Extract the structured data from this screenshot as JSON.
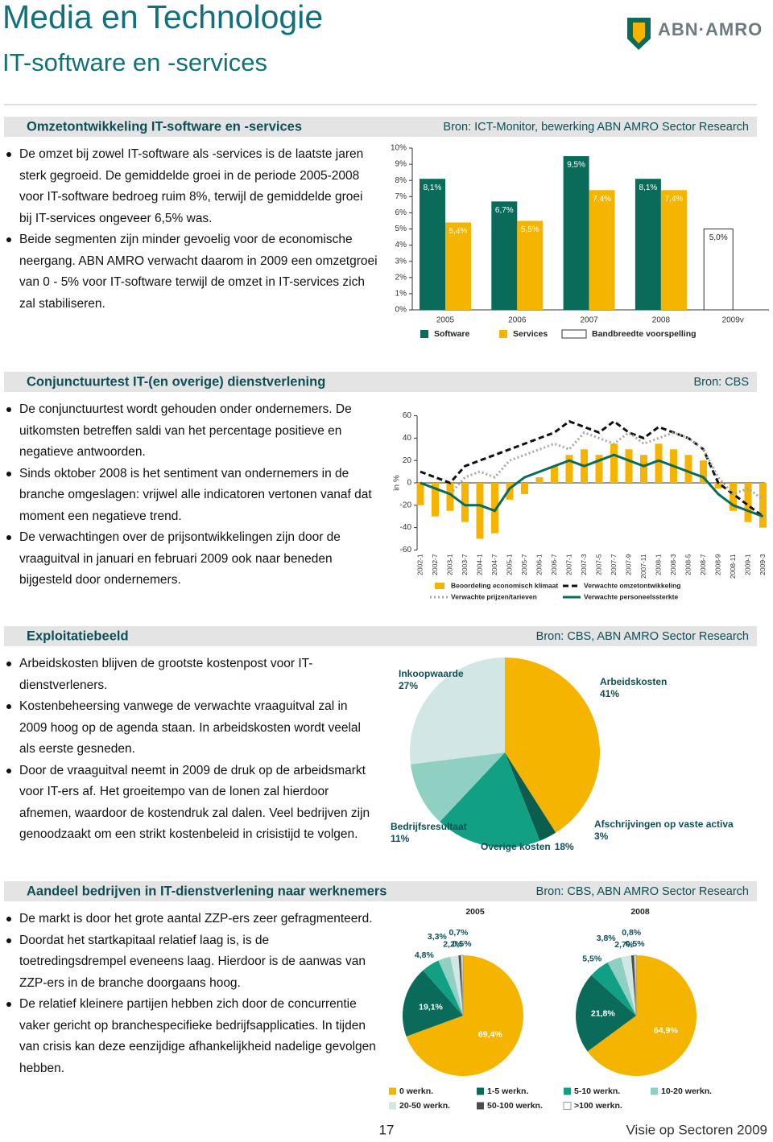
{
  "header": {
    "title": "Media en Technologie",
    "subtitle": "IT-software en -services",
    "logo": "ABN·AMRO"
  },
  "sections": [
    {
      "title": "Omzetontwikkeling IT-software en -services",
      "source": "Bron: ICT-Monitor, bewerking ABN AMRO Sector Research",
      "bullets": [
        "De omzet bij zowel IT-software als -services is de laatste jaren sterk gegroeid. De gemiddelde groei in de periode 2005-2008 voor IT-software bedroeg ruim 8%, terwijl de gemiddelde groei bij IT-services ongeveer 6,5% was.",
        "Beide segmenten zijn minder gevoelig voor de economische neergang. ABN AMRO verwacht daarom in 2009 een omzetgroei van 0 - 5% voor IT-software terwijl de omzet in IT-services zich zal stabiliseren."
      ]
    },
    {
      "title": "Conjunctuurtest IT-(en overige) dienstverlening",
      "source": "Bron: CBS",
      "bullets": [
        "De conjunctuurtest wordt gehouden onder ondernemers. De uitkomsten betreffen saldi van het percentage positieve en negatieve antwoorden.",
        "Sinds oktober 2008 is het sentiment van ondernemers in de branche omgeslagen: vrijwel alle indicatoren vertonen vanaf dat moment een negatieve trend.",
        "De verwachtingen over de prijsontwikkelingen zijn door de vraaguitval in januari en februari 2009 ook naar beneden bijgesteld door ondernemers."
      ]
    },
    {
      "title": "Exploitatiebeeld",
      "source": "Bron: CBS, ABN AMRO Sector Research",
      "bullets": [
        "Arbeidskosten blijven de grootste kostenpost voor IT-dienstverleners.",
        "Kostenbeheersing vanwege de verwachte vraaguitval zal in 2009 hoog op de agenda staan. In arbeidskosten wordt veelal als eerste gesneden.",
        "Door de vraaguitval neemt in 2009 de druk op de arbeidsmarkt voor IT-ers af. Het groeitempo van de lonen zal hierdoor afnemen, waardoor de kostendruk zal dalen. Veel bedrijven zijn genoodzaakt om een strikt kostenbeleid in crisistijd te volgen."
      ]
    },
    {
      "title": "Aandeel bedrijven in IT-dienstverlening naar werknemers",
      "source": "Bron: CBS, ABN AMRO Sector Research",
      "bullets": [
        "De markt is door het grote aantal ZZP-ers zeer gefragmenteerd.",
        "Doordat het startkapitaal relatief laag is, is de toetredingsdrempel eveneens laag. Hierdoor is de aanwas van ZZP-ers in de branche doorgaans hoog.",
        "De relatief kleinere partijen hebben zich door de concurrentie vaker gericht op branchespecifieke bedrijfsapplicaties. In tijden van crisis kan deze eenzijdige afhankelijkheid nadelige gevolgen hebben."
      ]
    }
  ],
  "chart_data": [
    {
      "type": "bar",
      "categories": [
        "2005",
        "2006",
        "2007",
        "2008",
        "2009v"
      ],
      "series": [
        {
          "name": "Software",
          "color": "#0b6b5a",
          "values": [
            8.1,
            6.7,
            9.5,
            8.1,
            null
          ],
          "value_labels": [
            "8,1%",
            "6,7%",
            "9,5%",
            "8,1%",
            null
          ]
        },
        {
          "name": "Services",
          "color": "#f5b400",
          "values": [
            5.4,
            5.5,
            7.4,
            7.4,
            null
          ],
          "value_labels": [
            "5,4%",
            "5,5%",
            "7,4%",
            "7,4%",
            null
          ]
        },
        {
          "name": "Bandbreedte voorspelling",
          "color": "#ffffff",
          "edgecolor": "#333333",
          "values": [
            null,
            null,
            null,
            null,
            5.0
          ],
          "value_labels": [
            null,
            null,
            null,
            null,
            "5,0%"
          ]
        }
      ],
      "ylim": [
        0,
        10
      ],
      "yticks": [
        {
          "value": 0,
          "label": "0%"
        },
        {
          "value": 1,
          "label": "1%"
        },
        {
          "value": 2,
          "label": "2%"
        },
        {
          "value": 3,
          "label": "3%"
        },
        {
          "value": 4,
          "label": "4%"
        },
        {
          "value": 5,
          "label": "5%"
        },
        {
          "value": 6,
          "label": "6%"
        },
        {
          "value": 7,
          "label": "7%"
        },
        {
          "value": 8,
          "label": "8%"
        },
        {
          "value": 9,
          "label": "9%"
        },
        {
          "value": 10,
          "label": "10%"
        }
      ],
      "grid": false
    },
    {
      "type": "combo",
      "y_label": "in %",
      "categories": [
        "2002-1",
        "2002-7",
        "2003-1",
        "2003-7",
        "2004-1",
        "2004-7",
        "2005-1",
        "2005-7",
        "2006-1",
        "2006-7",
        "2007-1",
        "2007-3",
        "2007-5",
        "2007-7",
        "2007-9",
        "2007-11",
        "2008-1",
        "2008-3",
        "2008-5",
        "2008-7",
        "2008-9",
        "2008-11",
        "2009-1",
        "2009-3"
      ],
      "series": [
        {
          "name": "Beoordeling economisch klimaat",
          "kind": "bar",
          "color": "#f5b400",
          "values": [
            -20,
            -30,
            -25,
            -35,
            -50,
            -45,
            -15,
            -10,
            5,
            15,
            25,
            30,
            25,
            35,
            30,
            25,
            35,
            30,
            25,
            20,
            -5,
            -25,
            -35,
            -40
          ]
        },
        {
          "name": "Verwachte omzetontwikkeling",
          "kind": "line",
          "style": "dashed",
          "color": "#111111",
          "values": [
            10,
            5,
            0,
            15,
            20,
            25,
            30,
            35,
            40,
            45,
            55,
            50,
            45,
            55,
            45,
            40,
            50,
            45,
            40,
            30,
            0,
            -10,
            -20,
            -30
          ]
        },
        {
          "name": "Verwachte prijzen/tarieven",
          "kind": "line",
          "style": "dotted",
          "color": "#a6a6a6",
          "values": [
            0,
            -5,
            -10,
            5,
            10,
            5,
            20,
            25,
            30,
            35,
            30,
            45,
            40,
            35,
            45,
            35,
            40,
            45,
            40,
            30,
            5,
            -10,
            -5,
            -15
          ]
        },
        {
          "name": "Verwachte personeelssterkte",
          "kind": "line",
          "style": "solid",
          "color": "#0b6b5a",
          "values": [
            0,
            -5,
            -10,
            -20,
            -20,
            -25,
            -5,
            5,
            10,
            15,
            20,
            15,
            20,
            25,
            20,
            15,
            20,
            15,
            10,
            5,
            -10,
            -20,
            -25,
            -30
          ]
        }
      ],
      "ylim": [
        -60,
        60
      ],
      "yticks": [
        -60,
        -40,
        -20,
        0,
        20,
        40,
        60
      ],
      "grid": false
    },
    {
      "type": "pie",
      "categories": [
        "Arbeidskosten",
        "Afschrijvingen op vaste activa",
        "Overige kosten",
        "Bedrijfsresultaat",
        "Inkoopwaarde"
      ],
      "values": [
        41,
        3,
        18,
        11,
        27
      ],
      "value_labels": [
        "41%",
        "3%",
        "18%",
        "11%",
        "27%"
      ],
      "colors": [
        "#f5b400",
        "#0b5e4e",
        "#12a085",
        "#8fd0c2",
        "#d3e6e6"
      ]
    },
    {
      "type": "pie",
      "categories": [
        "0 werkn.",
        "1-5 werkn.",
        "5-10 werkn.",
        "10-20 werkn.",
        "20-50 werkn.",
        "50-100 werkn.",
        ">100 werkn."
      ],
      "colors": [
        "#f5b400",
        "#0b6b5a",
        "#12a085",
        "#8fd0c2",
        "#d3e6e6",
        "#4d4d4d",
        "#ffffff"
      ],
      "series": [
        {
          "name": "2005",
          "values": [
            69.4,
            19.1,
            4.8,
            3.3,
            2.2,
            0.7,
            0.5
          ],
          "value_labels": [
            "69,4%",
            "19,1%",
            "4,8%",
            "3,3%",
            "2,2%",
            "0,7%",
            "0,5%"
          ]
        },
        {
          "name": "2008",
          "values": [
            64.9,
            21.8,
            5.5,
            3.8,
            2.7,
            0.8,
            0.5
          ],
          "value_labels": [
            "64,9%",
            "21,8%",
            "5,5%",
            "3,8%",
            "2,7%",
            "0,8%",
            "0,5%"
          ]
        }
      ]
    }
  ],
  "footer": {
    "page": "17",
    "publication": "Visie op Sectoren 2009"
  }
}
